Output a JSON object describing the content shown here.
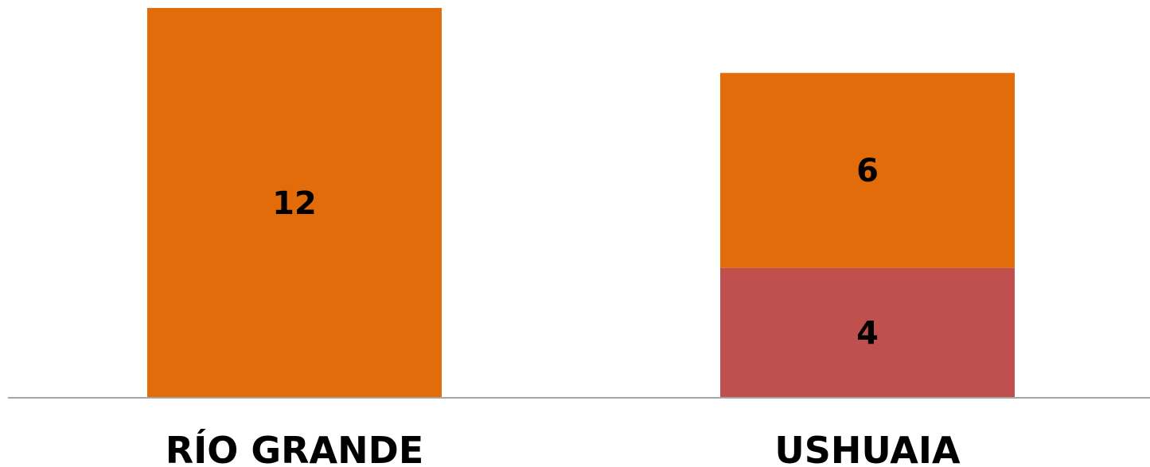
{
  "chart_data": {
    "type": "bar",
    "stacked": true,
    "categories": [
      "RÍO GRANDE",
      "USHUAIA"
    ],
    "series": [
      {
        "color": "#C0504D",
        "values": [
          0,
          4
        ]
      },
      {
        "color": "#E36C0A",
        "values": [
          12,
          6
        ]
      }
    ],
    "title": "",
    "xlabel": "",
    "ylabel": "",
    "ylim": [
      0,
      12
    ],
    "grid": false,
    "legend": "none",
    "axis_color": "#A6A6A6"
  }
}
